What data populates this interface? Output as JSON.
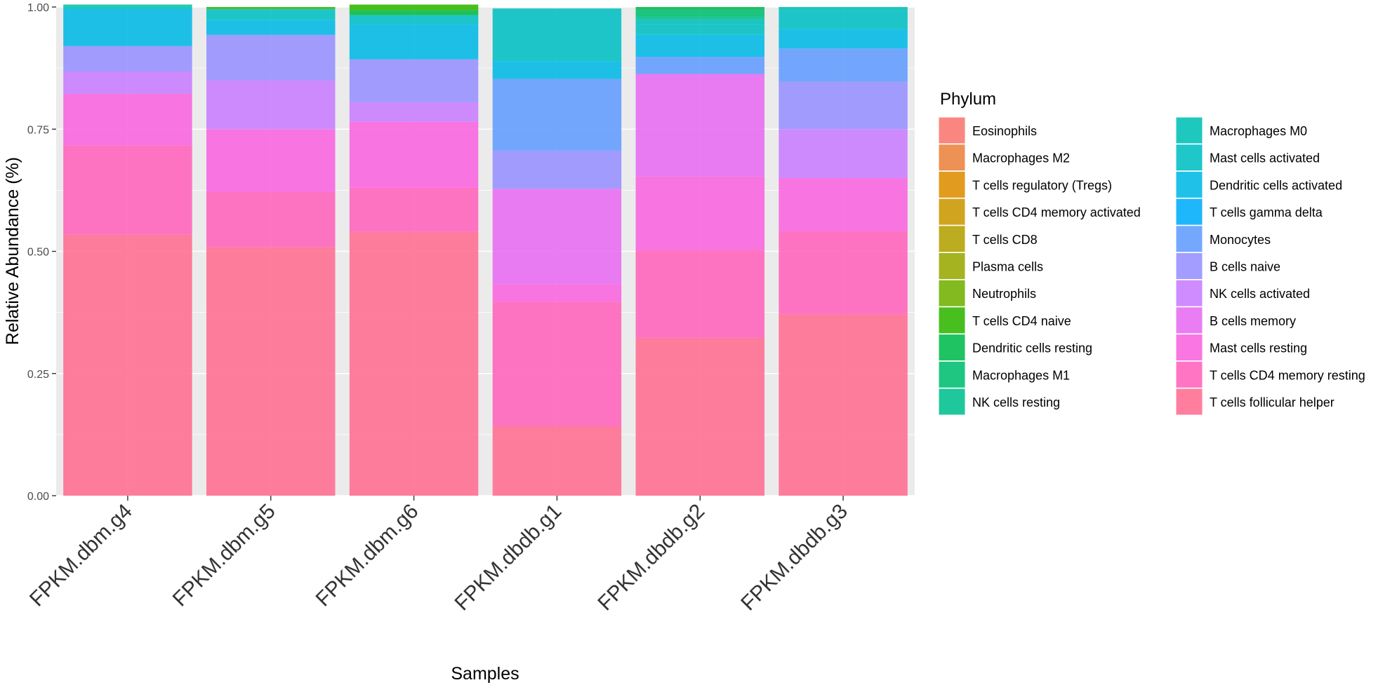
{
  "chart_data": {
    "type": "bar",
    "stacked": true,
    "title": "",
    "xlabel": "Samples",
    "ylabel": "Relative Abundance (%)",
    "ylim": [
      0,
      1
    ],
    "yticks": [
      "0.00",
      "0.25",
      "0.50",
      "0.75",
      "1.00"
    ],
    "categories": [
      "FPKM.dbm.g4",
      "FPKM.dbm.g5",
      "FPKM.dbm.g6",
      "FPKM.dbdb.g1",
      "FPKM.dbdb.g2",
      "FPKM.dbdb.g3"
    ],
    "legend": {
      "title": "Phylum",
      "position": "right"
    },
    "series": [
      {
        "name": "Eosinophils",
        "color": "#F8766D",
        "values": [
          0,
          0,
          0,
          0,
          0,
          0
        ]
      },
      {
        "name": "Macrophages M2",
        "color": "#EC823C",
        "values": [
          0,
          0,
          0,
          0,
          0,
          0
        ]
      },
      {
        "name": "T cells regulatory (Tregs)",
        "color": "#DD8D00",
        "values": [
          0,
          0,
          0,
          0,
          0,
          0
        ]
      },
      {
        "name": "T cells CD4 memory activated",
        "color": "#CB9700",
        "values": [
          0,
          0,
          0,
          0,
          0,
          0
        ]
      },
      {
        "name": "T cells CD8",
        "color": "#B3A000",
        "values": [
          0,
          0,
          0,
          0,
          0,
          0
        ]
      },
      {
        "name": "Plasma cells",
        "color": "#97A900",
        "values": [
          0,
          0,
          0,
          0,
          0,
          0
        ]
      },
      {
        "name": "Neutrophils",
        "color": "#71B000",
        "values": [
          0,
          0,
          0,
          0,
          0,
          0
        ]
      },
      {
        "name": "T cells CD4 naive",
        "color": "#2FB600",
        "values": [
          0,
          0.004,
          0.012,
          0,
          0,
          0
        ]
      },
      {
        "name": "Dendritic cells resting",
        "color": "#00BB4B",
        "values": [
          0,
          0,
          0.01,
          0,
          0.005,
          0
        ]
      },
      {
        "name": "Macrophages M1",
        "color": "#00BE70",
        "values": [
          0,
          0,
          0,
          0,
          0.015,
          0
        ]
      },
      {
        "name": "NK cells resting",
        "color": "#00C08E",
        "values": [
          0.003,
          0,
          0,
          0,
          0.005,
          0
        ]
      },
      {
        "name": "Macrophages M0",
        "color": "#00C0B5",
        "values": [
          0.002,
          0.003,
          0,
          0.002,
          0.01,
          0.008
        ]
      },
      {
        "name": "Mast cells activated",
        "color": "#00BFC4",
        "values": [
          0.005,
          0.02,
          0.018,
          0.106,
          0.022,
          0.037
        ]
      },
      {
        "name": "Dendritic cells activated",
        "color": "#00B8E5",
        "values": [
          0.075,
          0.03,
          0.072,
          0.036,
          0.045,
          0.04
        ]
      },
      {
        "name": "T cells gamma delta",
        "color": "#00ADFA",
        "values": [
          0,
          0,
          0,
          0,
          0,
          0
        ]
      },
      {
        "name": "Monocytes",
        "color": "#619CFF",
        "values": [
          0,
          0,
          0,
          0.147,
          0.035,
          0.068
        ]
      },
      {
        "name": "B cells naive",
        "color": "#9590FF",
        "values": [
          0.052,
          0.093,
          0.088,
          0.078,
          0,
          0.097
        ]
      },
      {
        "name": "NK cells activated",
        "color": "#C77CFF",
        "values": [
          0.046,
          0.1,
          0.04,
          0,
          0,
          0.1
        ]
      },
      {
        "name": "B cells memory",
        "color": "#E76BF3",
        "values": [
          0,
          0,
          0,
          0.195,
          0.21,
          0
        ]
      },
      {
        "name": "Mast cells resting",
        "color": "#F863DF",
        "values": [
          0.105,
          0.128,
          0.135,
          0.036,
          0.15,
          0.109
        ]
      },
      {
        "name": "T cells CD4 memory resting",
        "color": "#FF62BC",
        "values": [
          0.183,
          0.113,
          0.09,
          0.255,
          0.18,
          0.17
        ]
      },
      {
        "name": "T cells follicular helper",
        "color": "#FF6C91",
        "values": [
          0.534,
          0.509,
          0.54,
          0.142,
          0.323,
          0.371
        ]
      }
    ]
  }
}
